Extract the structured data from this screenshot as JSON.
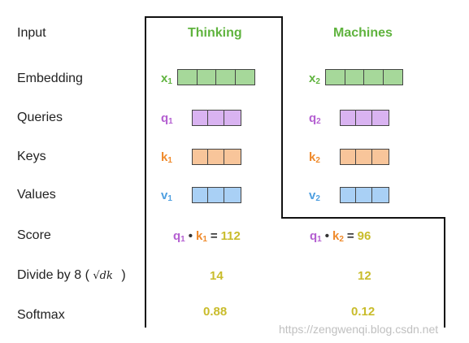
{
  "rows": {
    "input": "Input",
    "embedding": "Embedding",
    "queries": "Queries",
    "keys": "Keys",
    "values": "Values",
    "score": "Score",
    "divide_prefix": "Divide by 8 (",
    "divide_sqrt": "√dk",
    "divide_suffix": ")",
    "softmax": "Softmax"
  },
  "words": [
    "Thinking",
    "Machines"
  ],
  "symbols": {
    "x": "x",
    "q": "q",
    "k": "k",
    "v": "v",
    "sub1": "1",
    "sub2": "2",
    "dot": "•",
    "eq": "="
  },
  "scores": [
    "112",
    "96"
  ],
  "divided": [
    "14",
    "12"
  ],
  "softmax_values": [
    "0.88",
    "0.12"
  ],
  "watermark": "https://zengwenqi.blog.csdn.net",
  "colors": {
    "word": "#5fb33e",
    "x": "#5fb33e",
    "x_fill": "#a6d89a",
    "q": "#b45fd1",
    "q_fill": "#d9b3f1",
    "k": "#ef8a2b",
    "k_fill": "#f8c59a",
    "v": "#4e9fe0",
    "v_fill": "#a9d0f5",
    "number": "#c9bc2b"
  }
}
